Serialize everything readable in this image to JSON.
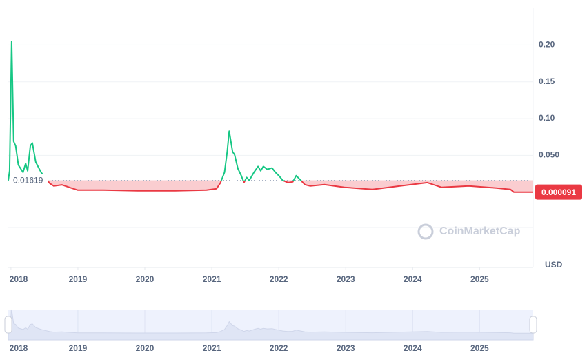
{
  "chart_data": {
    "type": "line",
    "x": [
      2017.96,
      2017.98,
      2018.01,
      2018.04,
      2018.07,
      2018.11,
      2018.18,
      2018.22,
      2018.25,
      2018.29,
      2018.32,
      2018.37,
      2018.42,
      2018.45,
      2018.51,
      2018.58,
      2018.64,
      2018.76,
      2018.87,
      2019.0,
      2019.38,
      2019.89,
      2020.41,
      2020.92,
      2021.07,
      2021.13,
      2021.19,
      2021.23,
      2021.26,
      2021.31,
      2021.34,
      2021.39,
      2021.44,
      2021.48,
      2021.52,
      2021.56,
      2021.63,
      2021.69,
      2021.73,
      2021.77,
      2021.83,
      2021.9,
      2021.95,
      2022.01,
      2022.06,
      2022.14,
      2022.21,
      2022.26,
      2022.33,
      2022.39,
      2022.47,
      2022.68,
      2022.98,
      2023.4,
      2023.81,
      2024.22,
      2024.43,
      2024.84,
      2025.25,
      2025.46,
      2025.51,
      2025.8
    ],
    "series": [
      {
        "values": [
          0.016,
          0.029,
          0.205,
          0.069,
          0.063,
          0.037,
          0.027,
          0.039,
          0.029,
          0.063,
          0.067,
          0.041,
          0.032,
          0.027,
          0.02,
          0.012,
          0.0084,
          0.01,
          0.0066,
          0.0028,
          0.0028,
          0.0019,
          0.0019,
          0.0028,
          0.0047,
          0.013,
          0.027,
          0.055,
          0.083,
          0.055,
          0.051,
          0.032,
          0.0225,
          0.013,
          0.02,
          0.016,
          0.027,
          0.035,
          0.029,
          0.035,
          0.031,
          0.033,
          0.027,
          0.0216,
          0.016,
          0.013,
          0.014,
          0.0225,
          0.016,
          0.0103,
          0.0084,
          0.0103,
          0.0066,
          0.0038,
          0.0084,
          0.013,
          0.0066,
          0.0084,
          0.0056,
          0.0038,
          9e-05,
          9.1e-05
        ]
      }
    ],
    "up_color": "#16c784",
    "down_color": "#ea3943",
    "baseline": 0.01619,
    "last_price": 9.1e-05,
    "currency": "USD",
    "watermark": "CoinMarketCap",
    "xlim": [
      2017.96,
      2025.8
    ],
    "xticks": [
      2018,
      2019,
      2020,
      2021,
      2022,
      2023,
      2024,
      2025
    ],
    "ylim": [
      -0.048,
      0.25
    ],
    "yticks": [
      {
        "value": 0.05,
        "label": "0.050"
      },
      {
        "value": 0.1,
        "label": "0.10"
      },
      0.15,
      {
        "value": 0.2,
        "label": "0.20"
      }
    ],
    "grid": true
  }
}
